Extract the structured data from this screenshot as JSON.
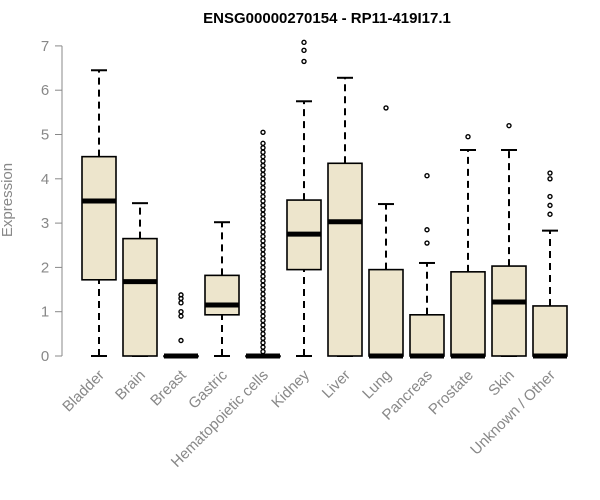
{
  "chart_data": {
    "type": "box",
    "title": "ENSG00000270154 - RP11-419I17.1",
    "ylabel": "Expression",
    "xlabel": "",
    "ylim": [
      0,
      7
    ],
    "yticks": [
      0,
      1,
      2,
      3,
      4,
      5,
      6,
      7
    ],
    "box_fill": "#ede5cc",
    "categories": [
      "Bladder",
      "Brain",
      "Breast",
      "Gastric",
      "Hematopoietic cells",
      "Kidney",
      "Liver",
      "Lung",
      "Pancreas",
      "Prostate",
      "Skin",
      "Unknown / Other"
    ],
    "boxes": [
      {
        "min": 0.0,
        "q1": 1.72,
        "median": 3.5,
        "q3": 4.5,
        "max": 6.45,
        "outliers": []
      },
      {
        "min": 0.0,
        "q1": 0.0,
        "median": 1.68,
        "q3": 2.65,
        "max": 3.45,
        "outliers": []
      },
      {
        "min": 0.0,
        "q1": 0.0,
        "median": 0.0,
        "q3": 0.0,
        "max": 0.0,
        "outliers": [
          0.35,
          0.9,
          1.0,
          1.2,
          1.3,
          1.38
        ]
      },
      {
        "min": 0.0,
        "q1": 0.93,
        "median": 1.15,
        "q3": 1.82,
        "max": 3.02,
        "outliers": []
      },
      {
        "min": 0.0,
        "q1": 0.0,
        "median": 0.0,
        "q3": 0.0,
        "max": 0.0,
        "outliers": [
          0.1,
          0.2,
          0.3,
          0.4,
          0.5,
          0.6,
          0.7,
          0.8,
          0.9,
          1.0,
          1.1,
          1.2,
          1.3,
          1.4,
          1.5,
          1.6,
          1.7,
          1.8,
          1.9,
          2.0,
          2.1,
          2.2,
          2.3,
          2.4,
          2.5,
          2.6,
          2.7,
          2.8,
          2.9,
          3.0,
          3.1,
          3.2,
          3.3,
          3.4,
          3.5,
          3.6,
          3.7,
          3.8,
          3.9,
          4.0,
          4.1,
          4.2,
          4.3,
          4.4,
          4.5,
          4.6,
          4.7,
          4.8,
          5.05
        ]
      },
      {
        "min": 0.0,
        "q1": 1.95,
        "median": 2.75,
        "q3": 3.52,
        "max": 5.75,
        "outliers": [
          6.65,
          6.9,
          7.08
        ]
      },
      {
        "min": 0.0,
        "q1": 0.0,
        "median": 3.03,
        "q3": 4.35,
        "max": 6.28,
        "outliers": []
      },
      {
        "min": 0.0,
        "q1": 0.0,
        "median": 0.0,
        "q3": 1.95,
        "max": 3.43,
        "outliers": [
          5.6
        ]
      },
      {
        "min": 0.0,
        "q1": 0.0,
        "median": 0.0,
        "q3": 0.93,
        "max": 2.1,
        "outliers": [
          2.55,
          2.85,
          4.07
        ]
      },
      {
        "min": 0.0,
        "q1": 0.0,
        "median": 0.0,
        "q3": 1.9,
        "max": 4.65,
        "outliers": [
          4.95
        ]
      },
      {
        "min": 0.0,
        "q1": 0.0,
        "median": 1.22,
        "q3": 2.03,
        "max": 4.65,
        "outliers": [
          5.2
        ]
      },
      {
        "min": 0.0,
        "q1": 0.0,
        "median": 0.0,
        "q3": 1.13,
        "max": 2.83,
        "outliers": [
          3.2,
          3.4,
          3.6,
          4.0,
          4.13
        ]
      }
    ]
  }
}
